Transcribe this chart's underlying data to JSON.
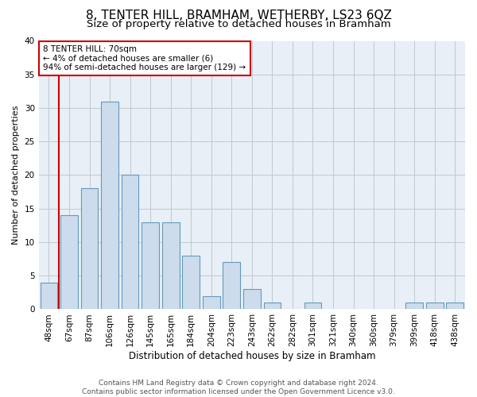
{
  "title1": "8, TENTER HILL, BRAMHAM, WETHERBY, LS23 6QZ",
  "title2": "Size of property relative to detached houses in Bramham",
  "xlabel": "Distribution of detached houses by size in Bramham",
  "ylabel": "Number of detached properties",
  "categories": [
    "48sqm",
    "67sqm",
    "87sqm",
    "106sqm",
    "126sqm",
    "145sqm",
    "165sqm",
    "184sqm",
    "204sqm",
    "223sqm",
    "243sqm",
    "262sqm",
    "282sqm",
    "301sqm",
    "321sqm",
    "340sqm",
    "360sqm",
    "379sqm",
    "399sqm",
    "418sqm",
    "438sqm"
  ],
  "values": [
    4,
    14,
    18,
    31,
    20,
    13,
    13,
    8,
    2,
    7,
    3,
    1,
    0,
    1,
    0,
    0,
    0,
    0,
    1,
    1,
    1
  ],
  "bar_color": "#ccdcec",
  "bar_edge_color": "#6699bb",
  "vline_color": "#cc0000",
  "vline_x": 0.5,
  "ylim": [
    0,
    40
  ],
  "yticks": [
    0,
    5,
    10,
    15,
    20,
    25,
    30,
    35,
    40
  ],
  "annotation_text": "8 TENTER HILL: 70sqm\n← 4% of detached houses are smaller (6)\n94% of semi-detached houses are larger (129) →",
  "annotation_box_color": "#cc0000",
  "grid_color": "#c0c8d0",
  "plot_bg_color": "#e8eff6",
  "footer_line1": "Contains HM Land Registry data © Crown copyright and database right 2024.",
  "footer_line2": "Contains public sector information licensed under the Open Government Licence v3.0.",
  "title1_fontsize": 11,
  "title2_fontsize": 9.5,
  "xlabel_fontsize": 8.5,
  "ylabel_fontsize": 8,
  "tick_fontsize": 7.5,
  "annotation_fontsize": 7.5,
  "footer_fontsize": 6.5
}
